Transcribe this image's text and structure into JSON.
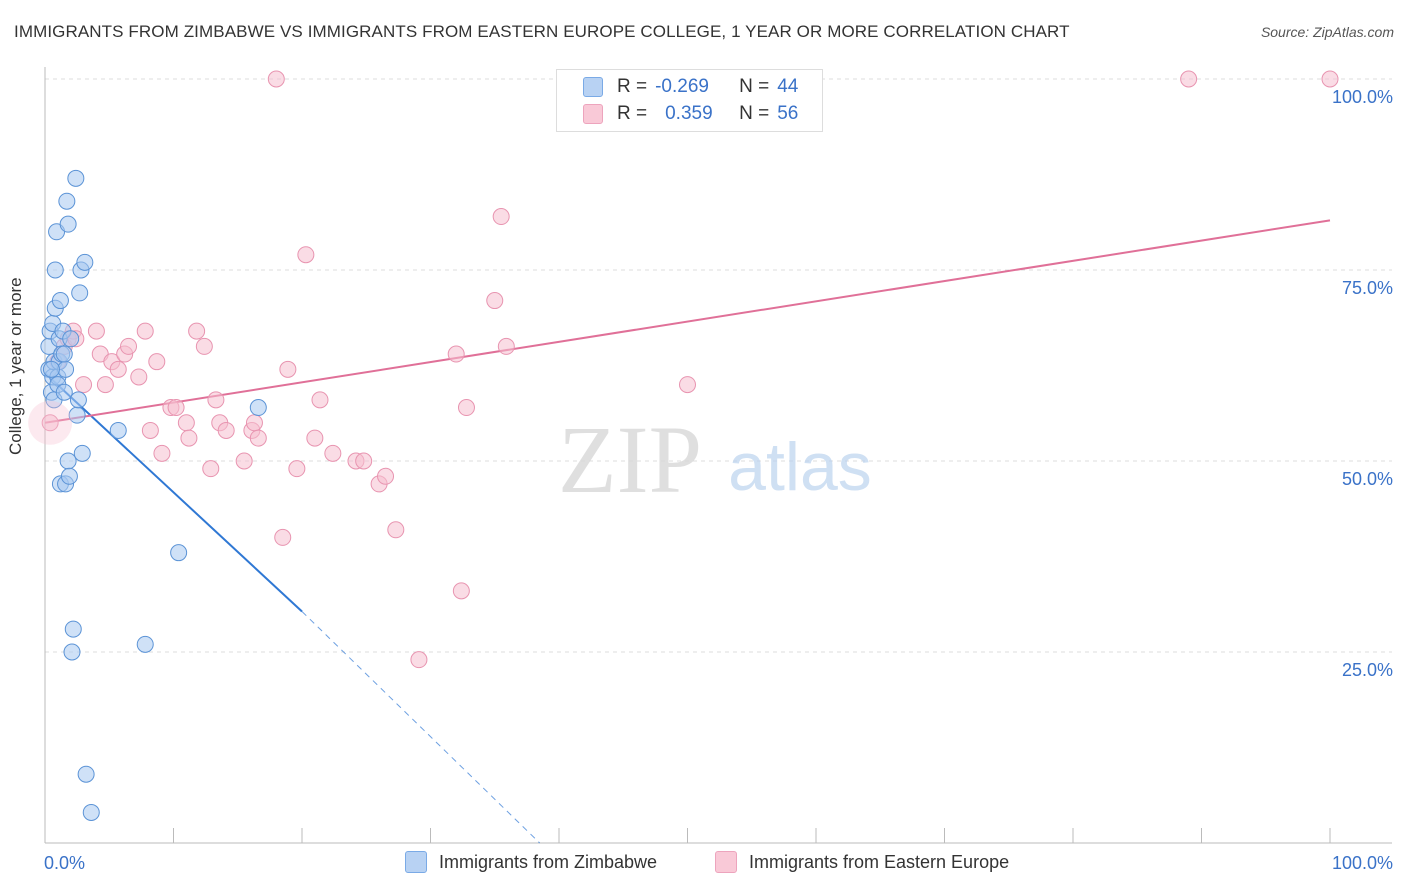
{
  "title": "IMMIGRANTS FROM ZIMBABWE VS IMMIGRANTS FROM EASTERN EUROPE COLLEGE, 1 YEAR OR MORE CORRELATION CHART",
  "source": "Source: ZipAtlas.com",
  "watermark": "ZIPatlas",
  "legend": {
    "zimbabwe": {
      "r_label": "R =",
      "r_value": "-0.269",
      "n_label": "N =",
      "n_value": "44"
    },
    "eastern_europe": {
      "r_label": "R =",
      "r_value": "0.359",
      "n_label": "N =",
      "n_value": "56"
    }
  },
  "bottom_legend": {
    "zimbabwe": "Immigrants from Zimbabwe",
    "eastern_europe": "Immigrants from Eastern Europe"
  },
  "colors": {
    "zimbabwe_fill": "#a8c8f0",
    "zimbabwe_stroke": "#5b93d6",
    "zimbabwe_line": "#2f78d4",
    "eastern_fill": "#f6bfd0",
    "eastern_stroke": "#e894b0",
    "eastern_line": "#e07098",
    "axis_text": "#3a72c8",
    "grid": "#dddddd"
  },
  "chart_data": {
    "type": "scatter",
    "title": "IMMIGRANTS FROM ZIMBABWE VS IMMIGRANTS FROM EASTERN EUROPE COLLEGE, 1 YEAR OR MORE CORRELATION CHART",
    "xlabel": "",
    "ylabel": "College, 1 year or more",
    "xlim": [
      0,
      100
    ],
    "ylim": [
      0,
      100
    ],
    "x_tick_labels": [
      "0.0%",
      "100.0%"
    ],
    "y_tick_labels": [
      "100.0%",
      "75.0%",
      "50.0%",
      "25.0%"
    ],
    "y_ticks": [
      100,
      75,
      50,
      25
    ],
    "series": [
      {
        "name": "Immigrants from Zimbabwe",
        "R": -0.269,
        "N": 44,
        "points": [
          [
            0.3,
            62
          ],
          [
            0.3,
            65
          ],
          [
            0.4,
            67
          ],
          [
            0.5,
            59
          ],
          [
            0.6,
            61
          ],
          [
            0.6,
            68
          ],
          [
            0.7,
            63
          ],
          [
            0.7,
            58
          ],
          [
            0.8,
            75
          ],
          [
            0.8,
            70
          ],
          [
            0.9,
            80
          ],
          [
            1.0,
            61
          ],
          [
            1.0,
            60
          ],
          [
            1.1,
            63
          ],
          [
            1.1,
            66
          ],
          [
            1.2,
            71
          ],
          [
            1.2,
            47
          ],
          [
            1.3,
            64
          ],
          [
            1.4,
            67
          ],
          [
            1.5,
            59
          ],
          [
            1.6,
            62
          ],
          [
            1.6,
            47
          ],
          [
            1.7,
            84
          ],
          [
            1.8,
            81
          ],
          [
            1.8,
            50
          ],
          [
            1.9,
            48
          ],
          [
            2.0,
            66
          ],
          [
            2.2,
            28
          ],
          [
            2.4,
            87
          ],
          [
            2.5,
            56
          ],
          [
            2.6,
            58
          ],
          [
            2.7,
            72
          ],
          [
            2.8,
            75
          ],
          [
            2.9,
            51
          ],
          [
            3.1,
            76
          ],
          [
            3.2,
            9
          ],
          [
            3.6,
            4
          ],
          [
            5.7,
            54
          ],
          [
            7.8,
            26
          ],
          [
            10.4,
            38
          ],
          [
            16.6,
            57
          ],
          [
            2.1,
            25
          ],
          [
            0.5,
            62
          ],
          [
            1.5,
            64
          ]
        ]
      },
      {
        "name": "Immigrants from Eastern Europe",
        "R": 0.359,
        "N": 56,
        "points": [
          [
            0.4,
            55
          ],
          [
            1.0,
            63
          ],
          [
            1.5,
            65
          ],
          [
            1.8,
            66
          ],
          [
            2.2,
            67
          ],
          [
            2.4,
            66
          ],
          [
            3.0,
            60
          ],
          [
            4.0,
            67
          ],
          [
            4.3,
            64
          ],
          [
            4.7,
            60
          ],
          [
            5.2,
            63
          ],
          [
            5.7,
            62
          ],
          [
            6.2,
            64
          ],
          [
            6.5,
            65
          ],
          [
            7.3,
            61
          ],
          [
            7.8,
            67
          ],
          [
            8.2,
            54
          ],
          [
            8.7,
            63
          ],
          [
            9.1,
            51
          ],
          [
            9.8,
            57
          ],
          [
            10.2,
            57
          ],
          [
            11.0,
            55
          ],
          [
            11.2,
            53
          ],
          [
            11.8,
            67
          ],
          [
            12.4,
            65
          ],
          [
            12.9,
            49
          ],
          [
            13.3,
            58
          ],
          [
            13.6,
            55
          ],
          [
            14.1,
            54
          ],
          [
            15.5,
            50
          ],
          [
            16.1,
            54
          ],
          [
            16.3,
            55
          ],
          [
            16.6,
            53
          ],
          [
            18.0,
            100
          ],
          [
            18.5,
            40
          ],
          [
            18.9,
            62
          ],
          [
            19.6,
            49
          ],
          [
            20.3,
            77
          ],
          [
            21.0,
            53
          ],
          [
            21.4,
            58
          ],
          [
            22.4,
            51
          ],
          [
            24.2,
            50
          ],
          [
            24.8,
            50
          ],
          [
            26.0,
            47
          ],
          [
            26.5,
            48
          ],
          [
            27.3,
            41
          ],
          [
            29.1,
            24
          ],
          [
            32.0,
            64
          ],
          [
            32.4,
            33
          ],
          [
            32.8,
            57
          ],
          [
            35.0,
            71
          ],
          [
            35.5,
            82
          ],
          [
            35.9,
            65
          ],
          [
            50.0,
            60
          ],
          [
            89.0,
            100
          ],
          [
            100.0,
            100
          ]
        ]
      }
    ],
    "trend_lines": [
      {
        "series": "Immigrants from Zimbabwe",
        "x": [
          0,
          20
        ],
        "y": [
          61.5,
          30.3
        ],
        "dashed_extension_to": [
          38.5,
          0
        ]
      },
      {
        "series": "Immigrants from Eastern Europe",
        "x": [
          0,
          100
        ],
        "y": [
          55.0,
          81.5
        ]
      }
    ]
  }
}
